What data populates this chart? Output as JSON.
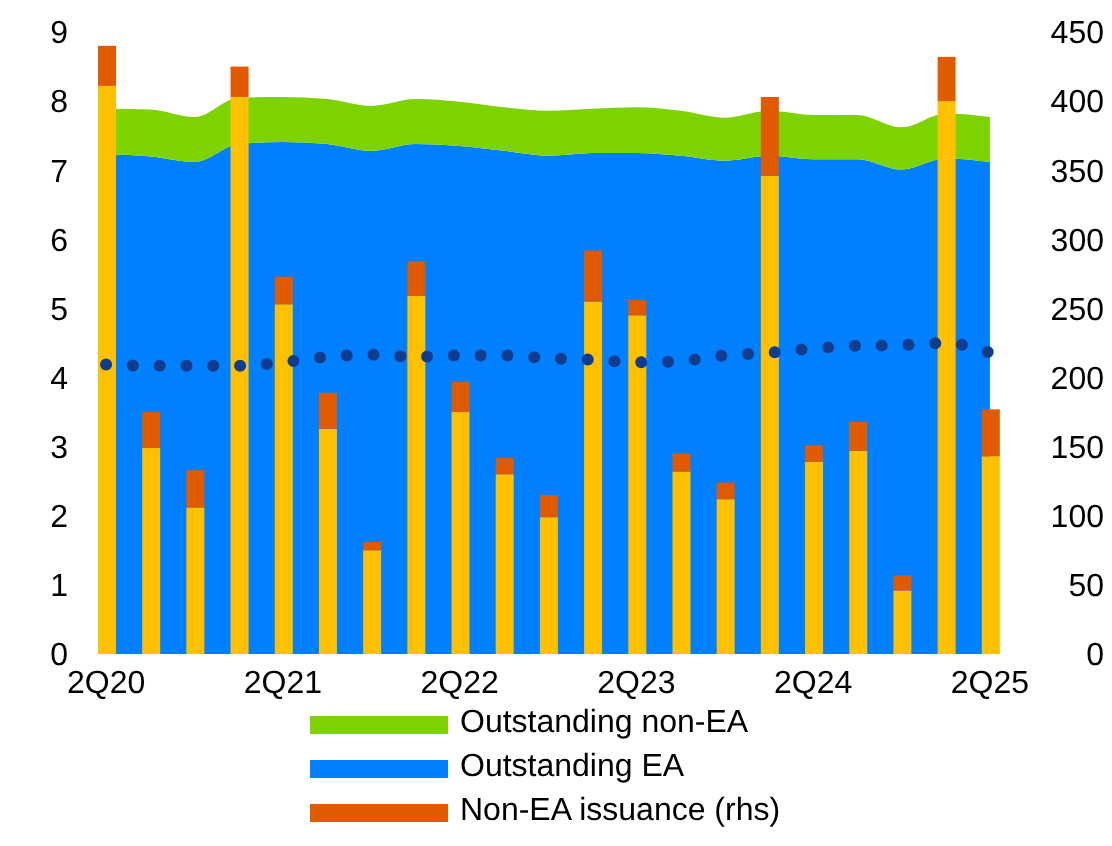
{
  "chart_data": {
    "type": "bar",
    "stacked": true,
    "categories": [
      "2Q20",
      null,
      null,
      null,
      "2Q21",
      null,
      null,
      null,
      "2Q22",
      null,
      null,
      null,
      "2Q23",
      null,
      null,
      null,
      "2Q24",
      null,
      null,
      null,
      "2Q25"
    ],
    "series": [
      {
        "type": "area",
        "name": "Outstanding EA",
        "color": "#0080ff",
        "axis": "y",
        "values": [
          7.23,
          7.2,
          7.12,
          7.38,
          7.41,
          7.38,
          7.28,
          7.38,
          7.35,
          7.28,
          7.21,
          7.25,
          7.25,
          7.21,
          7.14,
          7.21,
          7.16,
          7.16,
          7.01,
          7.17,
          7.12
        ]
      },
      {
        "type": "area",
        "name": "Outstanding non-EA",
        "color": "#7dd300",
        "axis": "y",
        "values": [
          0.66,
          0.68,
          0.65,
          0.67,
          0.65,
          0.65,
          0.65,
          0.65,
          0.64,
          0.63,
          0.65,
          0.64,
          0.66,
          0.65,
          0.62,
          0.65,
          0.64,
          0.64,
          0.61,
          0.65,
          0.65
        ]
      },
      {
        "color": "#ffc000",
        "axis": "y2",
        "values": [
          411,
          149,
          106,
          403,
          253,
          163,
          75,
          259,
          175,
          130,
          99,
          255,
          245,
          132,
          112,
          346,
          139,
          147,
          46,
          400,
          143
        ]
      },
      {
        "name": "Non-EA issuance (rhs)",
        "color": "#e05a00",
        "axis": "y2",
        "values": [
          29,
          26,
          27,
          22,
          20,
          26,
          6,
          25,
          22,
          12,
          16,
          37,
          11,
          13,
          12,
          57,
          12,
          21,
          11,
          32,
          34
        ]
      },
      {
        "type": "line",
        "color": "#0f3c8c",
        "axis": "y",
        "line_style": "dotted",
        "marker": "none",
        "values": [
          4.19,
          4.17,
          4.17,
          4.17,
          4.22,
          4.3,
          4.33,
          4.3,
          4.32,
          4.32,
          4.28,
          4.26,
          4.22,
          4.24,
          4.32,
          4.36,
          4.42,
          4.46,
          4.47,
          4.5,
          4.36
        ]
      }
    ],
    "ylim": [
      0,
      9
    ],
    "yticks": [
      0,
      1,
      2,
      3,
      4,
      5,
      6,
      7,
      8,
      9
    ],
    "y2lim": [
      0,
      450
    ],
    "y2ticks": [
      0,
      50,
      100,
      150,
      200,
      250,
      300,
      350,
      400,
      450
    ],
    "grid": false,
    "legend": "bottom"
  }
}
